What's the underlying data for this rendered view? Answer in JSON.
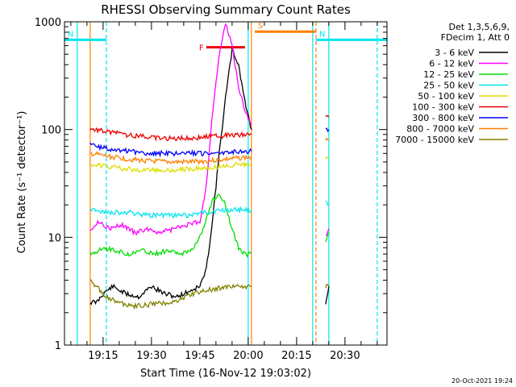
{
  "chart_data": {
    "type": "line",
    "title": "RHESSI Observing Summary Count Rates",
    "xlabel": "Start Time (16-Nov-12 19:03:02)",
    "ylabel": "Count Rate (s⁻¹ detector⁻¹)",
    "yscale": "log",
    "ylim": [
      1,
      1000
    ],
    "xlim": [
      "19:03:02",
      "20:43:02"
    ],
    "x_unit": "minutes",
    "xticks": [
      "19:15",
      "19:30",
      "19:45",
      "20:00",
      "20:15",
      "20:30"
    ],
    "yticks": [
      "1",
      "10",
      "100",
      "1000"
    ],
    "legend": {
      "position": "right",
      "header": [
        "Det 1,3,5,6,9,",
        "FDecim 1, Att 0"
      ]
    },
    "annotations": [
      {
        "type": "flag",
        "label": "N",
        "color": "#00E5EE",
        "x_start": "19:03",
        "x_end": "19:16",
        "y": 680
      },
      {
        "type": "flag",
        "label": "N",
        "color": "#00E5EE",
        "x_start": "20:21",
        "x_end": "20:43",
        "y": 680
      },
      {
        "type": "flag",
        "label": "S",
        "color": "#FF7F00",
        "x_start": "20:02",
        "x_end": "20:21",
        "y": 810
      },
      {
        "type": "flag",
        "label": "F",
        "color": "#EE0000",
        "x_start": "19:47",
        "x_end": "19:59",
        "y": 580
      }
    ],
    "vlines": [
      {
        "x": "19:07",
        "color": "#00E5EE",
        "style": "solid"
      },
      {
        "x": "19:11",
        "color": "#FF7F00",
        "style": "solid"
      },
      {
        "x": "19:16",
        "color": "#00E5EE",
        "style": "dashed"
      },
      {
        "x": "20:00",
        "color": "#00E5EE",
        "style": "solid"
      },
      {
        "x": "20:01",
        "color": "#FF7F00",
        "style": "solid"
      },
      {
        "x": "20:20",
        "color": "#00E5EE",
        "style": "solid"
      },
      {
        "x": "20:21",
        "color": "#FF7F00",
        "style": "dashed"
      },
      {
        "x": "20:25",
        "color": "#00E5EE",
        "style": "solid"
      },
      {
        "x": "20:40",
        "color": "#00E5EE",
        "style": "dashed"
      }
    ],
    "series": [
      {
        "name": "3 - 6 keV",
        "color": "#000000",
        "segments": [
          [
            [
              "19:11",
              2.5
            ],
            [
              "19:13",
              2.5
            ],
            [
              "19:15",
              3
            ],
            [
              "19:18",
              3.5
            ],
            [
              "19:22",
              3
            ],
            [
              "19:26",
              2.8
            ],
            [
              "19:30",
              3.5
            ],
            [
              "19:34",
              3
            ],
            [
              "19:38",
              2.8
            ],
            [
              "19:42",
              3.2
            ],
            [
              "19:45",
              3.5
            ],
            [
              "19:47",
              5
            ],
            [
              "19:49",
              15
            ],
            [
              "19:51",
              60
            ],
            [
              "19:53",
              200
            ],
            [
              "19:55",
              550
            ],
            [
              "19:57",
              400
            ],
            [
              "19:59",
              180
            ],
            [
              "20:01",
              100
            ]
          ],
          [
            [
              "20:24",
              2.5
            ],
            [
              "20:25",
              3.5
            ]
          ]
        ]
      },
      {
        "name": "6 - 12 keV",
        "color": "#FF00FF",
        "segments": [
          [
            [
              "19:11",
              12
            ],
            [
              "19:14",
              14
            ],
            [
              "19:17",
              12
            ],
            [
              "19:21",
              13
            ],
            [
              "19:25",
              11
            ],
            [
              "19:29",
              12
            ],
            [
              "19:33",
              11
            ],
            [
              "19:37",
              12
            ],
            [
              "19:41",
              13
            ],
            [
              "19:45",
              14
            ],
            [
              "19:47",
              30
            ],
            [
              "19:49",
              150
            ],
            [
              "19:51",
              500
            ],
            [
              "19:53",
              950
            ],
            [
              "19:55",
              600
            ],
            [
              "19:57",
              250
            ],
            [
              "19:59",
              150
            ],
            [
              "20:01",
              110
            ]
          ],
          [
            [
              "20:24",
              10
            ],
            [
              "20:25",
              12
            ]
          ]
        ]
      },
      {
        "name": "12 - 25 keV",
        "color": "#00DD00",
        "segments": [
          [
            [
              "19:11",
              7
            ],
            [
              "19:15",
              8
            ],
            [
              "19:19",
              7.5
            ],
            [
              "19:23",
              7
            ],
            [
              "19:27",
              7.5
            ],
            [
              "19:31",
              7
            ],
            [
              "19:35",
              7.5
            ],
            [
              "19:39",
              7
            ],
            [
              "19:43",
              8
            ],
            [
              "19:45",
              10
            ],
            [
              "19:47",
              15
            ],
            [
              "19:49",
              22
            ],
            [
              "19:51",
              25
            ],
            [
              "19:53",
              20
            ],
            [
              "19:55",
              12
            ],
            [
              "19:57",
              8
            ],
            [
              "19:59",
              7
            ],
            [
              "20:01",
              7
            ]
          ],
          [
            [
              "20:24",
              9
            ],
            [
              "20:25",
              11
            ]
          ]
        ]
      },
      {
        "name": "25 - 50 keV",
        "color": "#00E5EE",
        "segments": [
          [
            [
              "19:11",
              18
            ],
            [
              "19:17",
              17
            ],
            [
              "19:23",
              17
            ],
            [
              "19:29",
              16
            ],
            [
              "19:35",
              16
            ],
            [
              "19:41",
              16
            ],
            [
              "19:47",
              17
            ],
            [
              "19:53",
              18
            ],
            [
              "19:59",
              18
            ],
            [
              "20:01",
              18
            ]
          ],
          [
            [
              "20:24",
              22
            ],
            [
              "20:25",
              20
            ]
          ]
        ]
      },
      {
        "name": "50 - 100 keV",
        "color": "#DDDD00",
        "segments": [
          [
            [
              "19:11",
              48
            ],
            [
              "19:17",
              45
            ],
            [
              "19:23",
              43
            ],
            [
              "19:29",
              42
            ],
            [
              "19:35",
              42
            ],
            [
              "19:41",
              43
            ],
            [
              "19:47",
              44
            ],
            [
              "19:53",
              46
            ],
            [
              "19:59",
              48
            ],
            [
              "20:01",
              48
            ]
          ],
          [
            [
              "20:24",
              55
            ],
            [
              "20:25",
              55
            ]
          ]
        ]
      },
      {
        "name": "100 - 300 keV",
        "color": "#EE0000",
        "segments": [
          [
            [
              "19:11",
              102
            ],
            [
              "19:17",
              95
            ],
            [
              "19:23",
              88
            ],
            [
              "19:29",
              85
            ],
            [
              "19:35",
              83
            ],
            [
              "19:41",
              83
            ],
            [
              "19:47",
              86
            ],
            [
              "19:53",
              88
            ],
            [
              "19:59",
              90
            ],
            [
              "20:01",
              90
            ]
          ],
          [
            [
              "20:24",
              130
            ],
            [
              "20:25",
              130
            ]
          ]
        ]
      },
      {
        "name": "300 - 800 keV",
        "color": "#0000FF",
        "segments": [
          [
            [
              "19:11",
              72
            ],
            [
              "19:17",
              66
            ],
            [
              "19:23",
              63
            ],
            [
              "19:29",
              60
            ],
            [
              "19:35",
              60
            ],
            [
              "19:41",
              60
            ],
            [
              "19:47",
              60
            ],
            [
              "19:53",
              62
            ],
            [
              "19:59",
              63
            ],
            [
              "20:01",
              63
            ]
          ],
          [
            [
              "20:24",
              100
            ],
            [
              "20:25",
              100
            ]
          ]
        ]
      },
      {
        "name": "800 - 7000 keV",
        "color": "#FF7F00",
        "segments": [
          [
            [
              "19:11",
              60
            ],
            [
              "19:17",
              56
            ],
            [
              "19:23",
              53
            ],
            [
              "19:29",
              51
            ],
            [
              "19:35",
              50
            ],
            [
              "19:41",
              50
            ],
            [
              "19:47",
              51
            ],
            [
              "19:53",
              53
            ],
            [
              "19:59",
              55
            ],
            [
              "20:01",
              55
            ]
          ],
          [
            [
              "20:24",
              80
            ],
            [
              "20:25",
              80
            ]
          ]
        ]
      },
      {
        "name": "7000 - 15000 keV",
        "color": "#808000",
        "segments": [
          [
            [
              "19:11",
              4
            ],
            [
              "19:15",
              3
            ],
            [
              "19:19",
              2.5
            ],
            [
              "19:25",
              2.3
            ],
            [
              "19:31",
              2.4
            ],
            [
              "19:37",
              2.5
            ],
            [
              "19:43",
              3
            ],
            [
              "19:49",
              3.3
            ],
            [
              "19:55",
              3.5
            ],
            [
              "20:01",
              3.5
            ]
          ],
          [
            [
              "20:24",
              3.5
            ],
            [
              "20:25",
              3.5
            ]
          ]
        ]
      }
    ]
  },
  "footer": {
    "timestamp": "20-Oct-2021 19:24"
  }
}
